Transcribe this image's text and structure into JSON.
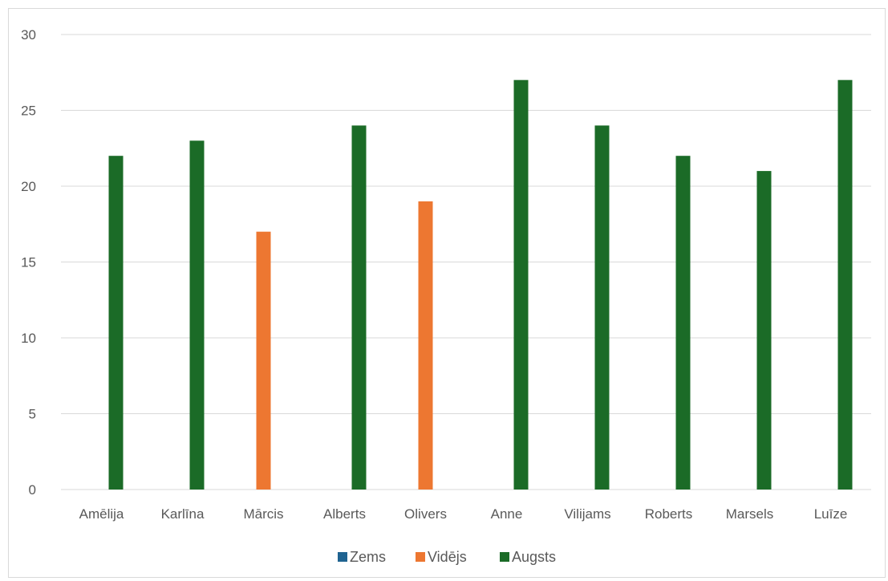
{
  "chart_data": {
    "type": "bar",
    "categories": [
      "Amēlija",
      "Karlīna",
      "Mārcis",
      "Alberts",
      "Olivers",
      "Anne",
      "Vilijams",
      "Roberts",
      "Marsels",
      "Luīze"
    ],
    "series": [
      {
        "name": "Zems",
        "color": "#1f6391",
        "values": [
          0,
          0,
          0,
          0,
          0,
          0,
          0,
          0,
          0,
          0
        ]
      },
      {
        "name": "Vidējs",
        "color": "#ed7731",
        "values": [
          0,
          0,
          17,
          0,
          19,
          0,
          0,
          0,
          0,
          0
        ]
      },
      {
        "name": "Augsts",
        "color": "#1b6b27",
        "values": [
          22,
          23,
          0,
          24,
          0,
          27,
          24,
          22,
          21,
          27
        ]
      }
    ],
    "title": "",
    "xlabel": "",
    "ylabel": "",
    "ylim": [
      0,
      30
    ],
    "yticks": [
      0,
      5,
      10,
      15,
      20,
      25,
      30
    ],
    "grid": true,
    "legend": "bottom"
  }
}
